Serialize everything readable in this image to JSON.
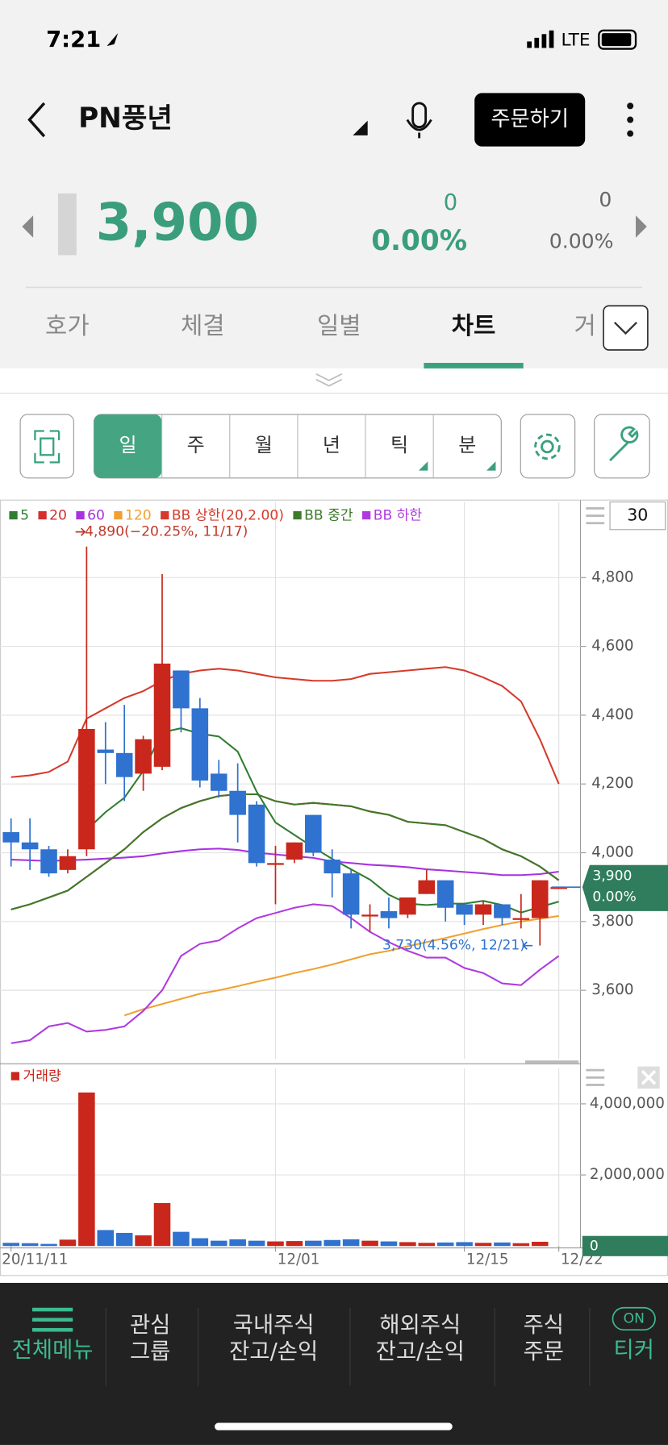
{
  "status_bar": {
    "time": "7:21",
    "network": "LTE"
  },
  "header": {
    "title": "PN풍년",
    "order_button": "주문하기"
  },
  "quote": {
    "price": "3,900",
    "change": "0",
    "change_rate": "0.00%",
    "volume_change": "0",
    "volume_rate": "0.00%"
  },
  "tabs": [
    "호가",
    "체결",
    "일별",
    "차트",
    "거"
  ],
  "active_tab": 3,
  "periods": [
    "일",
    "주",
    "월",
    "년",
    "틱",
    "분"
  ],
  "active_period": 0,
  "chart_data": {
    "type": "candlestick",
    "period_count": 30,
    "categories": [
      "20/11/11",
      null,
      null,
      null,
      null,
      null,
      null,
      null,
      null,
      null,
      null,
      null,
      null,
      null,
      "12/01",
      null,
      null,
      null,
      null,
      null,
      null,
      null,
      null,
      null,
      "12/15",
      null,
      null,
      null,
      null,
      "12/22"
    ],
    "candles": {
      "open": [
        4060,
        4030,
        4010,
        3950,
        4010,
        4300,
        4290,
        4230,
        4250,
        4530,
        4420,
        4230,
        4180,
        4140,
        3970,
        3980,
        4110,
        3980,
        3940,
        3820,
        3830,
        3820,
        3880,
        3920,
        3850,
        3820,
        3850,
        3810,
        3810,
        3900
      ],
      "high": [
        4100,
        4100,
        4020,
        4010,
        4890,
        4380,
        4430,
        4340,
        4810,
        4530,
        4450,
        4270,
        4260,
        4150,
        4020,
        4030,
        4110,
        4010,
        3950,
        3850,
        3870,
        3870,
        3950,
        3920,
        3850,
        3860,
        3850,
        3880,
        3920,
        3900
      ],
      "low": [
        3960,
        3950,
        3930,
        3940,
        3990,
        4200,
        4150,
        4180,
        4240,
        4350,
        4190,
        4160,
        4030,
        3960,
        3850,
        3970,
        3990,
        3870,
        3780,
        3770,
        3780,
        3810,
        3880,
        3800,
        3790,
        3790,
        3790,
        3780,
        3730,
        3900
      ],
      "close": [
        4030,
        4010,
        3940,
        3990,
        4360,
        4290,
        4220,
        4330,
        4550,
        4420,
        4210,
        4180,
        4110,
        3970,
        3970,
        4030,
        4000,
        3940,
        3820,
        3820,
        3810,
        3870,
        3920,
        3840,
        3820,
        3850,
        3810,
        3810,
        3920,
        3900
      ]
    },
    "up_color": "#c9271c",
    "down_color": "#2f72cf",
    "series": [
      {
        "name": "5",
        "color": "#2e7d32",
        "values": [
          null,
          null,
          null,
          null,
          4066,
          4118,
          4160,
          4238,
          4350,
          4362,
          4346,
          4338,
          4294,
          4178,
          4088,
          4052,
          4016,
          3982,
          3952,
          3922,
          3878,
          3852,
          3848,
          3852,
          3852,
          3860,
          3848,
          3826,
          3842,
          3858
        ]
      },
      {
        "name": "20",
        "color": "#d32f2f",
        "values": [
          3835,
          3850,
          3870,
          3890,
          3930,
          3970,
          4010,
          4060,
          4100,
          4130,
          4150,
          4165,
          4170,
          4170,
          4150,
          4140,
          4145,
          4140,
          4135,
          4120,
          4110,
          4090,
          4085,
          4080,
          4060,
          4040,
          4010,
          3990,
          3960,
          3920
        ]
      },
      {
        "name": "60",
        "color": "#a632e0",
        "values": [
          3980,
          3978,
          3976,
          3978,
          3980,
          3983,
          3986,
          3990,
          3998,
          4005,
          4010,
          4012,
          4008,
          4000,
          3995,
          3990,
          3985,
          3975,
          3970,
          3965,
          3962,
          3958,
          3952,
          3948,
          3944,
          3940,
          3935,
          3935,
          3938,
          3945
        ]
      },
      {
        "name": "120",
        "color": "#f0a030",
        "values": [
          null,
          null,
          null,
          null,
          null,
          null,
          3527,
          3545,
          3560,
          3575,
          3590,
          3600,
          3612,
          3625,
          3637,
          3650,
          3662,
          3675,
          3690,
          3705,
          3715,
          3728,
          3740,
          3752,
          3765,
          3778,
          3790,
          3800,
          3808,
          3816
        ]
      },
      {
        "name": "BB 상한(20,2.00)",
        "color": "#d63a2a",
        "values": [
          4220,
          4225,
          4235,
          4265,
          4390,
          4420,
          4450,
          4470,
          4500,
          4520,
          4530,
          4535,
          4530,
          4520,
          4510,
          4505,
          4500,
          4500,
          4505,
          4520,
          4525,
          4530,
          4535,
          4540,
          4530,
          4510,
          4485,
          4440,
          4330,
          4200
        ]
      },
      {
        "name": "BB 중간",
        "color": "#3d7a2a",
        "values": [
          3835,
          3850,
          3870,
          3890,
          3930,
          3970,
          4010,
          4060,
          4100,
          4130,
          4150,
          4165,
          4170,
          4170,
          4150,
          4140,
          4145,
          4140,
          4135,
          4120,
          4110,
          4090,
          4085,
          4080,
          4060,
          4040,
          4010,
          3990,
          3960,
          3920
        ]
      },
      {
        "name": "BB 하한",
        "color": "#b03ae0",
        "values": [
          3446,
          3455,
          3495,
          3505,
          3480,
          3485,
          3495,
          3540,
          3600,
          3700,
          3735,
          3745,
          3780,
          3810,
          3825,
          3840,
          3850,
          3845,
          3810,
          3770,
          3740,
          3715,
          3695,
          3695,
          3665,
          3650,
          3620,
          3615,
          3660,
          3700
        ]
      }
    ],
    "ylim": [
      3400,
      5020
    ],
    "yticks": [
      {
        "value": 3600,
        "label": "3,600"
      },
      {
        "value": 3800,
        "label": "3,800"
      },
      {
        "value": 4000,
        "label": "4,000"
      },
      {
        "value": 4200,
        "label": "4,200"
      },
      {
        "value": 4400,
        "label": "4,400"
      },
      {
        "value": 4600,
        "label": "4,600"
      },
      {
        "value": 4800,
        "label": "4,800"
      }
    ],
    "grid": true,
    "annotations": [
      {
        "text": "4,890(−20.25%, 11/17)",
        "color": "#c0392b"
      },
      {
        "text": "3,730(4.56%, 12/21)",
        "color": "#2f72cf"
      }
    ],
    "volume": {
      "name": "거래량",
      "color": "#c9271c",
      "values": [
        90000,
        80000,
        60000,
        180000,
        4320000,
        450000,
        370000,
        300000,
        1210000,
        400000,
        220000,
        150000,
        190000,
        150000,
        130000,
        140000,
        150000,
        170000,
        190000,
        150000,
        130000,
        110000,
        90000,
        100000,
        110000,
        90000,
        100000,
        80000,
        120000,
        0
      ],
      "ylim": [
        0,
        5000000
      ],
      "yticks": [
        {
          "value": 2000000,
          "label": "2,000,000"
        },
        {
          "value": 4000000,
          "label": "4,000,000"
        }
      ]
    }
  },
  "nav": [
    {
      "lines": [
        "전체메뉴"
      ]
    },
    {
      "lines": [
        "관심",
        "그룹"
      ]
    },
    {
      "lines": [
        "국내주식",
        "잔고/손익"
      ]
    },
    {
      "lines": [
        "해외주식",
        "잔고/손익"
      ]
    },
    {
      "lines": [
        "주식",
        "주문"
      ]
    },
    {
      "lines": [
        "티커"
      ],
      "badge": "ON"
    }
  ]
}
